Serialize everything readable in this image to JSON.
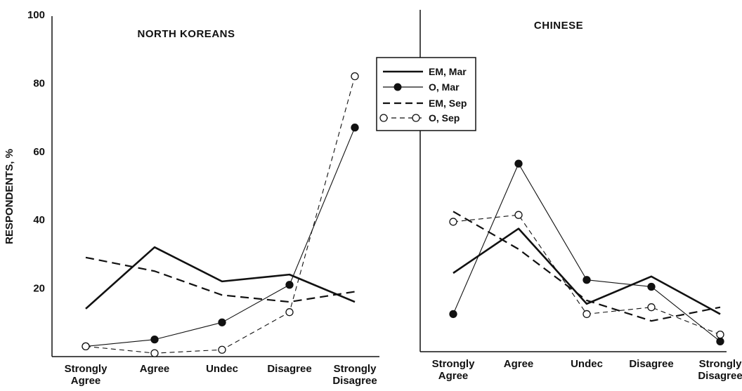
{
  "chart_data": [
    {
      "type": "line",
      "title": "NORTH KOREANS",
      "ylabel": "RESPONDENTS, %",
      "xlabel": "",
      "ylim": [
        0,
        100
      ],
      "yticks": [
        20,
        40,
        60,
        80,
        100
      ],
      "categories": [
        "Strongly Agree",
        "Agree",
        "Undec",
        "Disagree",
        "Strongly Disagree"
      ],
      "series": [
        {
          "name": "EM, Mar",
          "values": [
            14,
            32,
            22,
            24,
            16
          ]
        },
        {
          "name": "O, Mar",
          "values": [
            3,
            5,
            10,
            21,
            67
          ]
        },
        {
          "name": "EM, Sep",
          "values": [
            29,
            25,
            18,
            16,
            19
          ]
        },
        {
          "name": "O, Sep",
          "values": [
            3,
            1,
            2,
            13,
            82
          ]
        }
      ]
    },
    {
      "type": "line",
      "title": "CHINESE",
      "ylim": [
        0,
        100
      ],
      "categories": [
        "Strongly Agree",
        "Agree",
        "Undec",
        "Disagree",
        "Strongly Disagree"
      ],
      "series": [
        {
          "name": "EM, Mar",
          "values": [
            23,
            36,
            14,
            22,
            11
          ]
        },
        {
          "name": "O, Mar",
          "values": [
            11,
            55,
            21,
            19,
            3
          ]
        },
        {
          "name": "EM, Sep",
          "values": [
            41,
            30,
            15,
            9,
            13
          ]
        },
        {
          "name": "O, Sep",
          "values": [
            38,
            40,
            11,
            13,
            5
          ]
        }
      ]
    }
  ],
  "legend": {
    "entries": [
      "EM, Mar",
      "O, Mar",
      "EM, Sep",
      "O, Sep"
    ]
  }
}
